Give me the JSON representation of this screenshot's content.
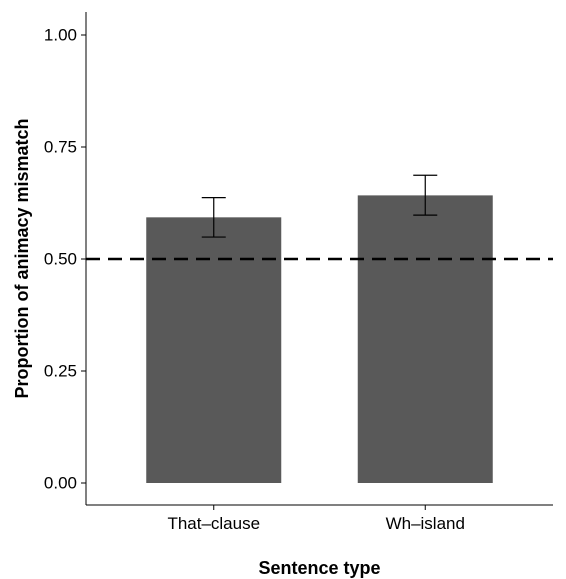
{
  "chart_data": {
    "type": "bar",
    "title": "",
    "xlabel": "Sentence type",
    "ylabel": "Proportion of animacy mismatch",
    "categories": [
      "That–clause",
      "Wh–island"
    ],
    "values": [
      0.593,
      0.642
    ],
    "error_bars": {
      "lower": [
        0.549,
        0.598
      ],
      "upper": [
        0.637,
        0.687
      ]
    },
    "reference_line": {
      "y": 0.5,
      "style": "dashed"
    },
    "ylim": [
      0,
      1
    ],
    "y_ticks": [
      0.0,
      0.25,
      0.5,
      0.75,
      1.0
    ],
    "y_tick_labels": [
      "0.00",
      "0.25",
      "0.50",
      "0.75",
      "1.00"
    ],
    "grid": false,
    "legend": "none",
    "colors": {
      "bar": "#595959",
      "axis": "#000000",
      "error_bar": "#000000",
      "reference_line": "#000000"
    }
  }
}
